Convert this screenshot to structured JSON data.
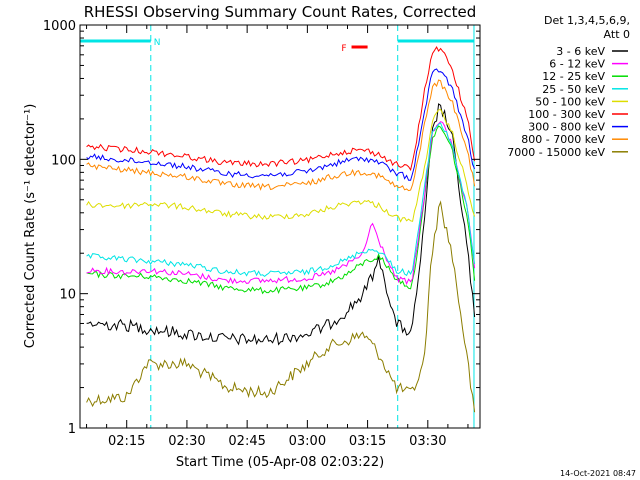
{
  "chart_data": {
    "type": "line",
    "title": "RHESSI Observing Summary Count Rates, Corrected",
    "xlabel": "Start Time (05-Apr-08 02:03:22)",
    "ylabel": "Corrected Count Rate (s⁻¹ detector⁻¹)",
    "y_scale": "log",
    "ylim": [
      1,
      1000
    ],
    "xlim": [
      "02:03:22",
      "03:43:00"
    ],
    "x_ticks": [
      "02:15",
      "02:30",
      "02:45",
      "03:00",
      "03:15",
      "03:30"
    ],
    "y_ticks": [
      "1",
      "10",
      "100",
      "1000"
    ],
    "grid": false,
    "legend_position": "right",
    "legend_header": [
      "Det 1,3,4,5,6,9,",
      "Att 0"
    ],
    "footer_timestamp": "14-Oct-2021 08:47",
    "flags": [
      {
        "label": "N",
        "start": "02:03:22",
        "end": "02:21:00",
        "color": "#00e5e5"
      },
      {
        "label": "F",
        "start": "03:11:00",
        "end": "03:15:00",
        "color": "#ff0000"
      },
      {
        "label": "",
        "start": "03:22:30",
        "end": "03:41:30",
        "color": "#00e5e5"
      }
    ],
    "vlines": [
      "02:03:22",
      "02:21:00",
      "03:22:30",
      "03:41:30"
    ],
    "series": [
      {
        "name": "3 - 6 keV",
        "color": "#000000",
        "x": [
          "02:05",
          "02:15",
          "02:20",
          "02:30",
          "02:40",
          "02:50",
          "03:00",
          "03:05",
          "03:10",
          "03:14",
          "03:18",
          "03:22",
          "03:26",
          "03:29",
          "03:31",
          "03:33",
          "03:36",
          "03:40",
          "03:42"
        ],
        "values": [
          6,
          5.8,
          5.5,
          5,
          4.6,
          4.5,
          5,
          5.8,
          7.5,
          10,
          18,
          6,
          5,
          30,
          150,
          260,
          150,
          20,
          5
        ]
      },
      {
        "name": "6 - 12 keV",
        "color": "#ff00ff",
        "x": [
          "02:05",
          "02:15",
          "02:20",
          "02:30",
          "02:40",
          "02:50",
          "03:00",
          "03:05",
          "03:10",
          "03:14",
          "03:16",
          "03:18",
          "03:22",
          "03:26",
          "03:29",
          "03:31",
          "03:33",
          "03:36",
          "03:40",
          "03:42"
        ],
        "values": [
          15,
          14.5,
          15,
          14,
          12.5,
          12.5,
          13,
          14,
          16.5,
          20,
          34,
          24,
          13,
          12,
          50,
          150,
          200,
          130,
          40,
          12
        ]
      },
      {
        "name": "12 - 25 keV",
        "color": "#00dd00",
        "x": [
          "02:05",
          "02:15",
          "02:20",
          "02:30",
          "02:40",
          "02:50",
          "03:00",
          "03:05",
          "03:10",
          "03:14",
          "03:18",
          "03:22",
          "03:26",
          "03:29",
          "03:31",
          "03:33",
          "03:36",
          "03:40",
          "03:42"
        ],
        "values": [
          14,
          13.5,
          13.5,
          12.5,
          11,
          10.5,
          11,
          12,
          14,
          17,
          19,
          13,
          11,
          45,
          140,
          180,
          120,
          35,
          10
        ]
      },
      {
        "name": "25 - 50 keV",
        "color": "#00e5e5",
        "x": [
          "02:05",
          "02:15",
          "02:20",
          "02:30",
          "02:40",
          "02:50",
          "03:00",
          "03:05",
          "03:10",
          "03:14",
          "03:18",
          "03:22",
          "03:26",
          "03:29",
          "03:31",
          "03:33",
          "03:36",
          "03:40",
          "03:42"
        ],
        "values": [
          19,
          18,
          17.5,
          16.5,
          14.5,
          14,
          14.5,
          16,
          18,
          21,
          21,
          15,
          14,
          55,
          160,
          190,
          130,
          40,
          13
        ]
      },
      {
        "name": "50 - 100 keV",
        "color": "#dddd00",
        "x": [
          "02:05",
          "02:15",
          "02:20",
          "02:30",
          "02:40",
          "02:50",
          "03:00",
          "03:05",
          "03:10",
          "03:14",
          "03:18",
          "03:22",
          "03:26",
          "03:29",
          "03:31",
          "03:33",
          "03:36",
          "03:40",
          "03:42"
        ],
        "values": [
          46,
          45,
          47,
          44,
          39,
          37,
          39,
          43,
          47,
          49,
          45,
          37,
          34,
          80,
          190,
          230,
          160,
          60,
          33
        ]
      },
      {
        "name": "100 - 300 keV",
        "color": "#ff0000",
        "x": [
          "02:05",
          "02:15",
          "02:20",
          "02:30",
          "02:40",
          "02:50",
          "03:00",
          "03:05",
          "03:10",
          "03:14",
          "03:18",
          "03:22",
          "03:26",
          "03:29",
          "03:31",
          "03:33",
          "03:36",
          "03:40",
          "03:42"
        ],
        "values": [
          125,
          118,
          115,
          105,
          94,
          92,
          98,
          108,
          115,
          118,
          108,
          92,
          85,
          300,
          620,
          680,
          480,
          190,
          85
        ]
      },
      {
        "name": "300 - 800 keV",
        "color": "#0000ff",
        "x": [
          "02:05",
          "02:15",
          "02:20",
          "02:30",
          "02:40",
          "02:50",
          "03:00",
          "03:05",
          "03:10",
          "03:14",
          "03:18",
          "03:22",
          "03:26",
          "03:29",
          "03:31",
          "03:33",
          "03:36",
          "03:40",
          "03:42"
        ],
        "values": [
          105,
          98,
          96,
          88,
          78,
          76,
          81,
          90,
          98,
          102,
          95,
          79,
          72,
          210,
          430,
          470,
          340,
          140,
          72
        ]
      },
      {
        "name": "800 - 7000 keV",
        "color": "#ff8800",
        "x": [
          "02:05",
          "02:15",
          "02:20",
          "02:30",
          "02:40",
          "02:50",
          "03:00",
          "03:05",
          "03:10",
          "03:14",
          "03:18",
          "03:22",
          "03:26",
          "03:29",
          "03:31",
          "03:33",
          "03:36",
          "03:40",
          "03:42"
        ],
        "values": [
          90,
          83,
          80,
          74,
          65,
          62,
          66,
          73,
          79,
          81,
          75,
          63,
          58,
          170,
          340,
          380,
          270,
          110,
          58
        ]
      },
      {
        "name": "7000 - 15000 keV",
        "color": "#8b7d00",
        "x": [
          "02:05",
          "02:15",
          "02:20",
          "02:30",
          "02:40",
          "02:50",
          "03:00",
          "03:05",
          "03:10",
          "03:14",
          "03:18",
          "03:22",
          "03:26",
          "03:29",
          "03:31",
          "03:33",
          "03:36",
          "03:40",
          "03:42"
        ],
        "values": [
          1.6,
          1.7,
          3,
          3,
          2,
          1.8,
          3,
          4,
          4.5,
          5,
          3.5,
          2,
          1.8,
          3,
          20,
          48,
          20,
          3,
          1
        ]
      }
    ]
  }
}
